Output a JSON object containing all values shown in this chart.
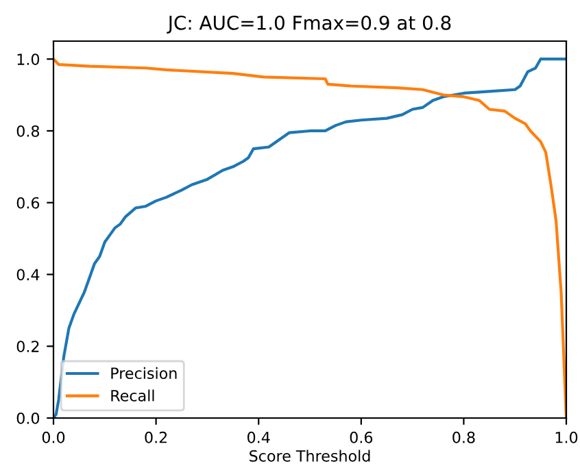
{
  "chart_data": {
    "type": "line",
    "title": "JC: AUC=1.0 Fmax=0.9 at 0.8",
    "xlabel": "Score Threshold",
    "xlim": [
      0,
      1
    ],
    "ylim": [
      0,
      1.05
    ],
    "xticks": [
      {
        "value": 0,
        "label": "0.0"
      },
      0.2,
      0.4,
      0.6,
      0.8,
      {
        "value": 1,
        "label": "1.0"
      }
    ],
    "yticks": [
      {
        "value": 0,
        "label": "0.0"
      },
      0.2,
      0.4,
      0.6,
      0.8,
      {
        "value": 1,
        "label": "1.0"
      }
    ],
    "grid": false,
    "legend": "lower left",
    "series": [
      {
        "name": "Precision",
        "color": "#1f77b4",
        "x": [
          0,
          0.005,
          0.01,
          0.02,
          0.03,
          0.04,
          0.05,
          0.06,
          0.07,
          0.08,
          0.09,
          0.1,
          0.11,
          0.12,
          0.13,
          0.14,
          0.16,
          0.18,
          0.2,
          0.22,
          0.25,
          0.27,
          0.3,
          0.33,
          0.35,
          0.37,
          0.38,
          0.39,
          0.42,
          0.44,
          0.46,
          0.5,
          0.53,
          0.55,
          0.57,
          0.6,
          0.65,
          0.68,
          0.7,
          0.72,
          0.74,
          0.76,
          0.8,
          0.85,
          0.9,
          0.91,
          0.925,
          0.94,
          0.95,
          1.0
        ],
        "values": [
          0,
          0.01,
          0.05,
          0.17,
          0.25,
          0.29,
          0.32,
          0.35,
          0.39,
          0.43,
          0.45,
          0.49,
          0.51,
          0.53,
          0.54,
          0.56,
          0.585,
          0.59,
          0.605,
          0.615,
          0.635,
          0.65,
          0.665,
          0.69,
          0.7,
          0.715,
          0.725,
          0.75,
          0.755,
          0.775,
          0.795,
          0.8,
          0.8,
          0.815,
          0.825,
          0.83,
          0.835,
          0.845,
          0.86,
          0.865,
          0.885,
          0.895,
          0.905,
          0.91,
          0.915,
          0.925,
          0.965,
          0.975,
          1.0,
          1.0
        ]
      },
      {
        "name": "Recall",
        "color": "#ff7f0e",
        "x": [
          0,
          0.01,
          0.07,
          0.18,
          0.22,
          0.35,
          0.41,
          0.53,
          0.535,
          0.58,
          0.67,
          0.72,
          0.76,
          0.8,
          0.83,
          0.85,
          0.88,
          0.9,
          0.92,
          0.93,
          0.95,
          0.96,
          0.97,
          0.98,
          0.99,
          1.0
        ],
        "values": [
          1.0,
          0.985,
          0.98,
          0.975,
          0.97,
          0.96,
          0.95,
          0.945,
          0.93,
          0.925,
          0.92,
          0.915,
          0.9,
          0.895,
          0.885,
          0.86,
          0.855,
          0.835,
          0.82,
          0.8,
          0.77,
          0.74,
          0.65,
          0.55,
          0.35,
          0.0
        ]
      }
    ]
  }
}
